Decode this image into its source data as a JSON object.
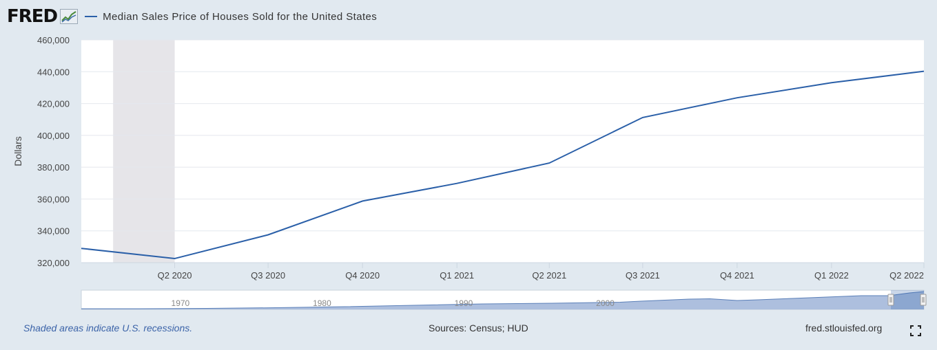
{
  "header": {
    "logo": "FRED",
    "logo_icon": "trend-chart-icon",
    "legend_label": "Median Sales Price of Houses Sold for the United States",
    "line_color": "#2a5fa8"
  },
  "chart_data": {
    "type": "line",
    "title": "",
    "xlabel": "",
    "ylabel": "Dollars",
    "ylim": [
      320000,
      460000
    ],
    "yticks": [
      320000,
      340000,
      360000,
      380000,
      400000,
      420000,
      440000,
      460000
    ],
    "ytick_labels": [
      "320,000",
      "340,000",
      "360,000",
      "380,000",
      "400,000",
      "420,000",
      "440,000",
      "460,000"
    ],
    "xlim": [
      "2020-01-01",
      "2022-04-01"
    ],
    "xticks": [
      "2020-04-01",
      "2020-07-01",
      "2020-10-01",
      "2021-01-01",
      "2021-04-01",
      "2021-07-01",
      "2021-10-01",
      "2022-01-01",
      "2022-04-01"
    ],
    "xtick_labels": [
      "Q2 2020",
      "Q3 2020",
      "Q4 2020",
      "Q1 2021",
      "Q2 2021",
      "Q3 2021",
      "Q4 2021",
      "Q1 2022",
      "Q2 2022"
    ],
    "grid": true,
    "series": [
      {
        "name": "Median Sales Price of Houses Sold for the United States",
        "x": [
          "2020-01-01",
          "2020-04-01",
          "2020-07-01",
          "2020-10-01",
          "2021-01-01",
          "2021-04-01",
          "2021-07-01",
          "2021-10-01",
          "2022-01-01",
          "2022-04-01"
        ],
        "y": [
          329000,
          322600,
          337500,
          358700,
          369800,
          382600,
          411200,
          423600,
          433100,
          440300
        ]
      }
    ],
    "recessions": [
      [
        "2020-02-01",
        "2020-04-01"
      ]
    ],
    "navigator": {
      "labels": [
        "1970",
        "1980",
        "1990",
        "2000"
      ]
    }
  },
  "footer": {
    "recession_note": "Shaded areas indicate U.S. recessions.",
    "sources": "Sources: Census; HUD",
    "site": "fred.stlouisfed.org"
  },
  "icons": {
    "fullscreen": "fullscreen-icon"
  }
}
